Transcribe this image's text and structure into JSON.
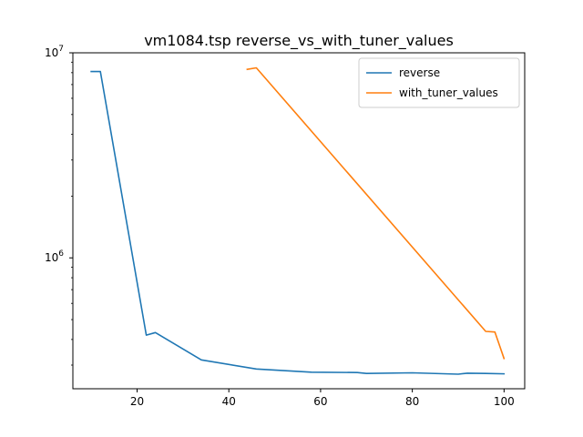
{
  "chart_data": {
    "type": "line",
    "title": "vm1084.tsp  reverse_vs_with_tuner_values",
    "xlabel": "",
    "ylabel": "",
    "xlim": [
      6,
      104.5
    ],
    "ylim": [
      230000,
      10000000
    ],
    "yscale": "log",
    "x_ticks": [
      20,
      40,
      60,
      80,
      100
    ],
    "y_ticks": [
      {
        "value": 1000000,
        "base": "10",
        "exp": "6"
      },
      {
        "value": 10000000,
        "base": "10",
        "exp": "7"
      }
    ],
    "grid": false,
    "legend_position": "top-right",
    "series": [
      {
        "name": "reverse",
        "color": "#1f77b4",
        "x": [
          10,
          12,
          22,
          24,
          34,
          46,
          58,
          68,
          70,
          80,
          90,
          92,
          96,
          100
        ],
        "y": [
          8100000,
          8100000,
          420000,
          432000,
          318000,
          287000,
          277000,
          276000,
          273000,
          275000,
          271000,
          274000,
          273000,
          272000
        ]
      },
      {
        "name": "with_tuner_values",
        "color": "#ff7f0e",
        "x": [
          44,
          46,
          96,
          98,
          100
        ],
        "y": [
          8300000,
          8450000,
          438000,
          435000,
          323000
        ]
      }
    ]
  }
}
